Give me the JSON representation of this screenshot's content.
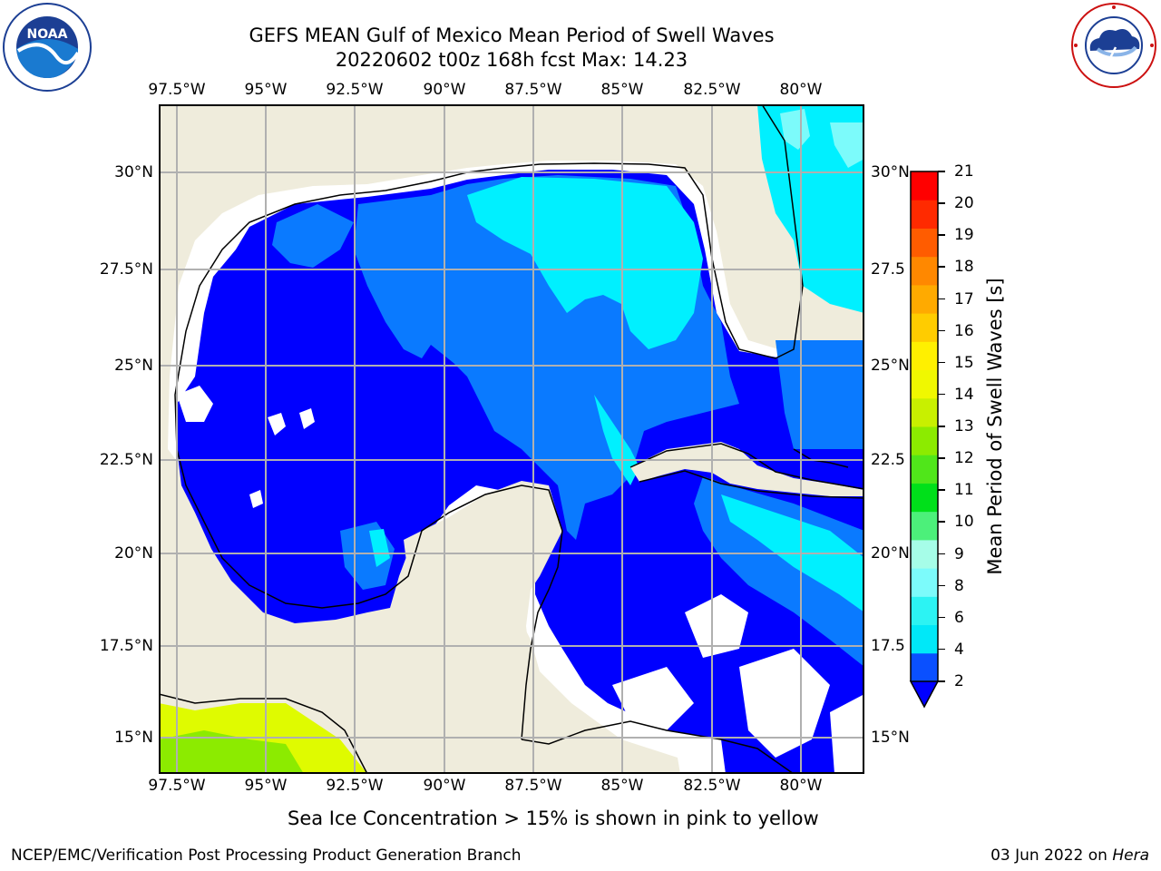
{
  "title": {
    "line1": "GEFS MEAN Gulf of Mexico Mean Period of Swell Waves",
    "line2": "20220602 t00z 168h fcst   Max: 14.23"
  },
  "logos": {
    "left": {
      "icon": "noaa-logo",
      "text": "NOAA"
    },
    "right": {
      "icon": "nws-logo"
    }
  },
  "map": {
    "longitude_ticks": [
      "97.5°W",
      "95°W",
      "92.5°W",
      "90°W",
      "87.5°W",
      "85°W",
      "82.5°W",
      "80°W"
    ],
    "latitude_ticks_left": [
      "30°N",
      "27.5°N",
      "25°N",
      "22.5°N",
      "20°N",
      "17.5°N",
      "15°N"
    ],
    "latitude_ticks_right": [
      "30°N",
      "27.5",
      "25°N",
      "22.5",
      "20°N",
      "17.5",
      "15°N"
    ],
    "extent": {
      "lon_min": -98,
      "lon_max": -78.35,
      "lat_min": 14,
      "lat_max": 31.8
    },
    "colors": {
      "land": "#efecdc",
      "no_data": "#ffffff",
      "grid": "#b0b0b0",
      "coast": "#000000"
    }
  },
  "colorbar": {
    "label": "Mean Period of Swell Waves [s]",
    "ticks": [
      "2",
      "4",
      "6",
      "8",
      "9",
      "10",
      "11",
      "12",
      "13",
      "14",
      "15",
      "16",
      "17",
      "18",
      "19",
      "20",
      "21"
    ],
    "colors": [
      "#0a50ff",
      "#00e8f8",
      "#2cf3f3",
      "#7cfbfb",
      "#a6fde8",
      "#4cf07a",
      "#00e01a",
      "#50e61a",
      "#8ceb00",
      "#c8f000",
      "#f0f800",
      "#fff000",
      "#ffcc00",
      "#ffaa00",
      "#ff8800",
      "#ff5c00",
      "#ff2a00",
      "#ff0000"
    ],
    "extend_color": "#0000ff"
  },
  "caption": "Sea Ice Concentration > 15% is shown in pink to yellow",
  "footer": {
    "left": "NCEP/EMC/Verification Post Processing Product Generation Branch",
    "date": "03 Jun 2022 on ",
    "machine": "Hera"
  }
}
